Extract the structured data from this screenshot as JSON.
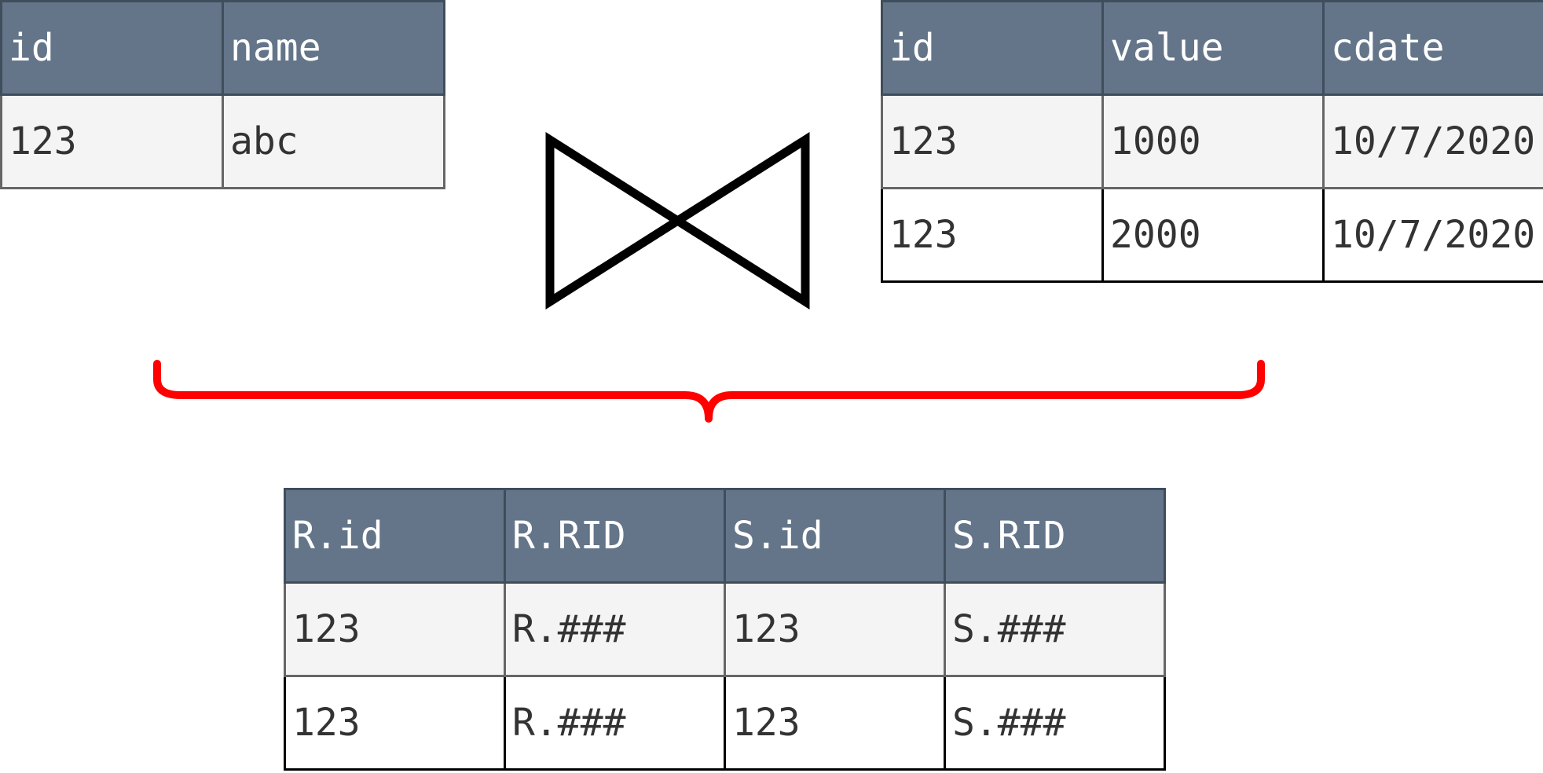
{
  "table_r": {
    "headers": [
      "id",
      "name"
    ],
    "rows": [
      [
        "123",
        "abc"
      ]
    ]
  },
  "table_s": {
    "headers": [
      "id",
      "value",
      "cdate"
    ],
    "rows": [
      [
        "123",
        "1000",
        "10/7/2020"
      ],
      [
        "123",
        "2000",
        "10/7/2020"
      ]
    ]
  },
  "result_table": {
    "headers": [
      "R.id",
      "R.RID",
      "S.id",
      "S.RID"
    ],
    "rows": [
      [
        "123",
        "R.###",
        "123",
        "S.###"
      ],
      [
        "123",
        "R.###",
        "123",
        "S.###"
      ]
    ]
  },
  "colors": {
    "header_bg": "#647589",
    "highlight": "#ff0000",
    "join_symbol": "#000000"
  },
  "icons": {
    "join": "bowtie-join-icon",
    "brace": "curly-brace"
  }
}
